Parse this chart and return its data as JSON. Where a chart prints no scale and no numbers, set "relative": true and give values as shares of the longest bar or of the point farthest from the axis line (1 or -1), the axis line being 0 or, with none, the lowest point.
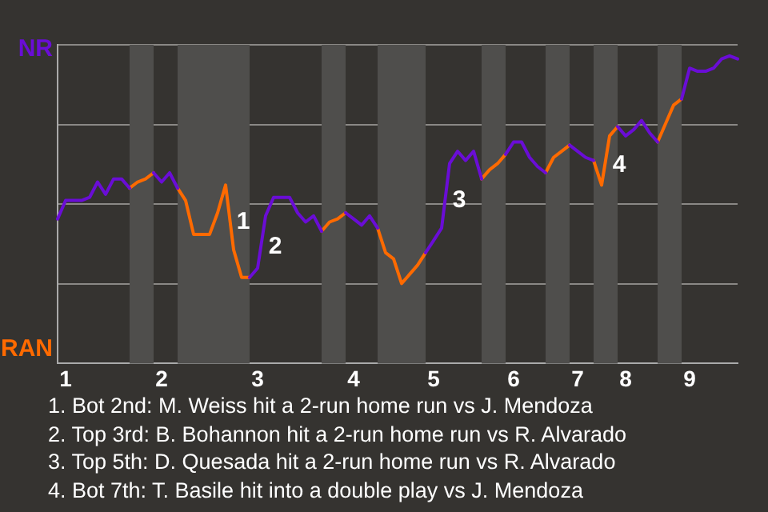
{
  "chart_data": {
    "type": "line",
    "relative": true,
    "categories": [
      null,
      "1",
      null,
      null,
      null,
      null,
      null,
      null,
      null,
      null,
      null,
      null,
      null,
      "2",
      null,
      null,
      null,
      null,
      null,
      null,
      null,
      null,
      null,
      null,
      null,
      "3",
      null,
      null,
      null,
      null,
      null,
      null,
      null,
      null,
      null,
      null,
      null,
      "4",
      null,
      null,
      null,
      null,
      null,
      null,
      null,
      null,
      null,
      "5",
      null,
      null,
      null,
      null,
      null,
      null,
      null,
      null,
      null,
      "6",
      null,
      null,
      null,
      null,
      null,
      null,
      null,
      "7",
      null,
      null,
      null,
      null,
      null,
      "8",
      null,
      null,
      null,
      null,
      null,
      null,
      null,
      "9",
      null,
      null,
      null,
      null,
      null,
      null
    ],
    "series": [
      {
        "name": "NR",
        "color": "#6a0dd6",
        "values": [
          0.47,
          0.53,
          0.53,
          0.53,
          0.54,
          0.59,
          0.55,
          0.6,
          0.6,
          0.57,
          null,
          null,
          0.62,
          0.59,
          0.62,
          0.57,
          null,
          null,
          null,
          null,
          null,
          null,
          null,
          null,
          0.28,
          0.31,
          0.48,
          0.54,
          0.54,
          0.54,
          0.49,
          0.46,
          0.48,
          0.43,
          null,
          null,
          0.49,
          0.47,
          0.45,
          0.48,
          0.44,
          null,
          null,
          null,
          null,
          null,
          0.36,
          0.4,
          0.44,
          0.65,
          0.69,
          0.66,
          0.69,
          0.6,
          null,
          null,
          0.68,
          0.72,
          0.72,
          0.67,
          0.64,
          0.62,
          null,
          null,
          0.71,
          0.69,
          0.67,
          0.66,
          null,
          null,
          0.77,
          0.74,
          0.76,
          0.79,
          0.75,
          0.72,
          null,
          null,
          0.86,
          0.96,
          0.95,
          0.95,
          0.96,
          0.99,
          1,
          0.99
        ]
      },
      {
        "name": "RAN",
        "color": "#ff6a00",
        "values": [
          null,
          null,
          null,
          null,
          null,
          null,
          null,
          null,
          null,
          0.57,
          0.59,
          0.6,
          0.62,
          null,
          null,
          0.57,
          0.53,
          0.42,
          0.42,
          0.42,
          0.49,
          0.58,
          0.37,
          0.28,
          0.28,
          null,
          null,
          null,
          null,
          null,
          null,
          null,
          null,
          0.43,
          0.46,
          0.47,
          0.49,
          null,
          null,
          null,
          0.44,
          0.36,
          0.34,
          0.26,
          0.29,
          0.32,
          0.36,
          null,
          null,
          null,
          null,
          null,
          null,
          0.6,
          0.63,
          0.65,
          0.68,
          null,
          null,
          null,
          null,
          0.62,
          0.67,
          0.69,
          0.71,
          null,
          null,
          0.66,
          0.58,
          0.74,
          0.77,
          null,
          null,
          null,
          null,
          0.72,
          0.78,
          0.84,
          0.86,
          null,
          null,
          null,
          null,
          null,
          null,
          null
        ]
      }
    ],
    "grid": "y",
    "marker": "none",
    "line_style": "solid",
    "legend": "left",
    "annotations": [
      "1",
      "2",
      "3",
      "4",
      "1. Bot 2nd: M. Weiss hit a 2-run home run vs J. Mendoza",
      "2. Top 3rd: B. Bohannon hit a 2-run home run vs R. Alvarado",
      "3. Top 5th: D. Quesada hit a 2-run home run vs R. Alvarado",
      "4. Bot 7th: T. Basile hit into a double play vs J. Mendoza"
    ]
  }
}
